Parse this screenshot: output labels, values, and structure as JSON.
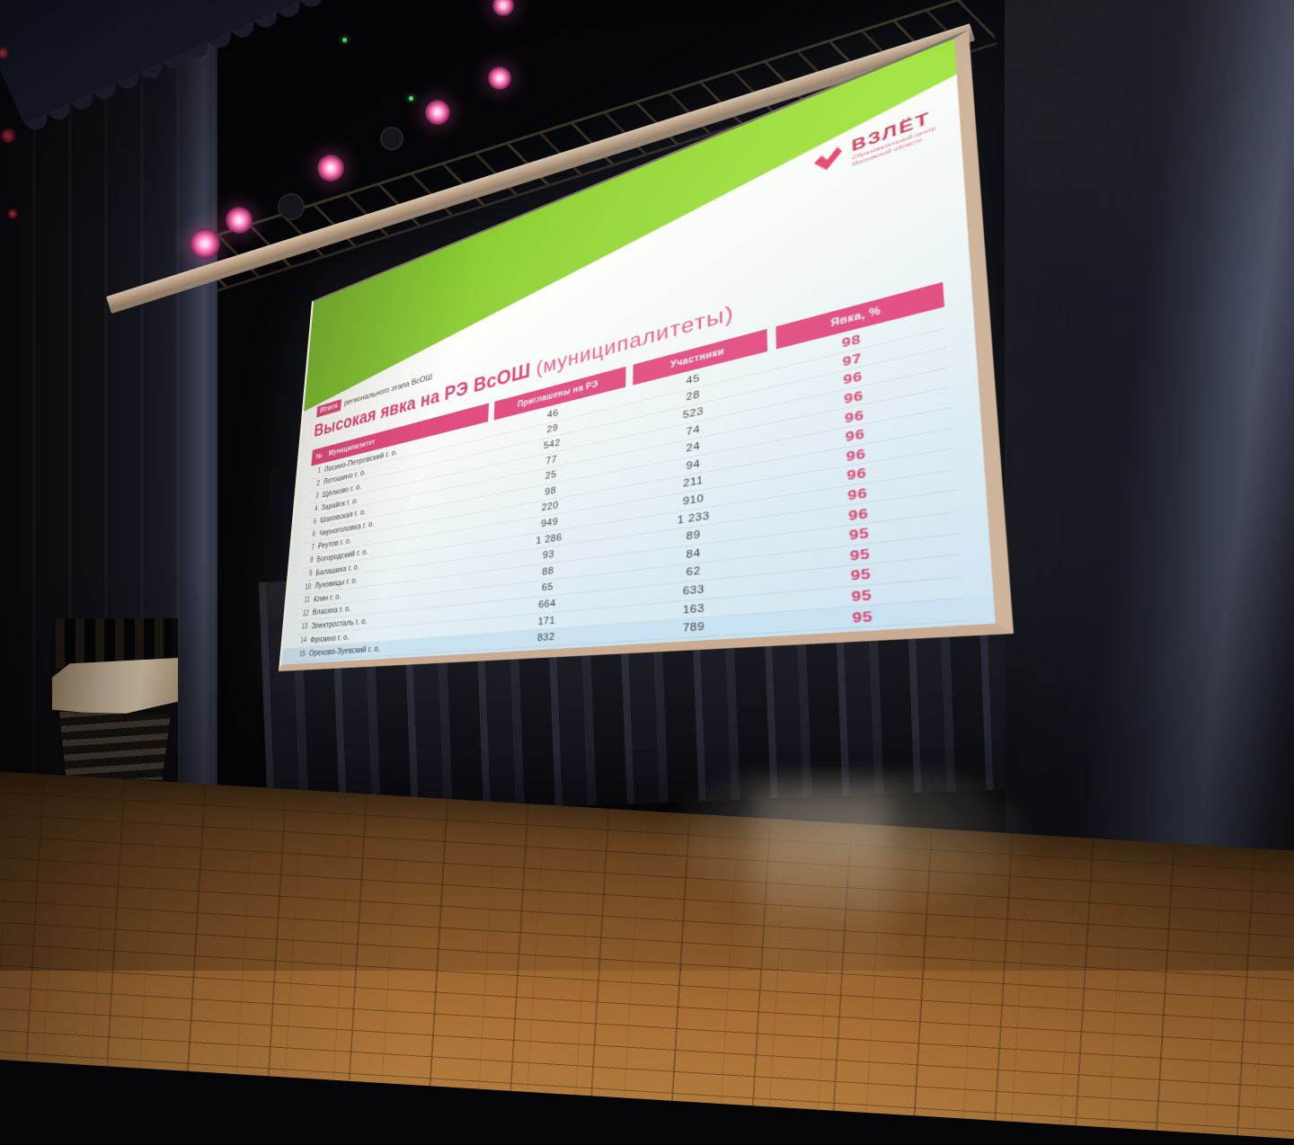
{
  "scene": {
    "stage_light_color": "#ff8cc4",
    "curtain_color": "#16171f",
    "floor_color": "#96622e"
  },
  "slide": {
    "kicker": {
      "highlight": "Итоги",
      "rest": "регионального этапа ВсОШ"
    },
    "title": "Высокая явка на РЭ ВсОШ",
    "title_suffix": "(муниципалитеты)",
    "logo": {
      "wordmark": "ВЗЛЁТ",
      "tagline_line1": "Образовательный центр",
      "tagline_line2": "Московской области"
    },
    "colors": {
      "accent_pink": "#e0457b",
      "title_pink": "#e23d72",
      "rate_pink": "#d6446e",
      "lime_green": "#97d32f",
      "logo_red": "#d13a56"
    },
    "table": {
      "columns": [
        "№",
        "Муниципалитет",
        "Приглашены на РЭ",
        "Участники",
        "Явка, %"
      ],
      "rows": [
        [
          "1",
          "Лосино-Петровский г. о.",
          "46",
          "45",
          "98"
        ],
        [
          "2",
          "Лотошино г. о.",
          "29",
          "28",
          "97"
        ],
        [
          "3",
          "Щёлково г. о.",
          "542",
          "523",
          "96"
        ],
        [
          "4",
          "Зарайск г. о.",
          "77",
          "74",
          "96"
        ],
        [
          "5",
          "Шаховская г. о.",
          "25",
          "24",
          "96"
        ],
        [
          "6",
          "Черноголовка г. о.",
          "98",
          "94",
          "96"
        ],
        [
          "7",
          "Реутов г. о.",
          "220",
          "211",
          "96"
        ],
        [
          "8",
          "Богородский г. о.",
          "949",
          "910",
          "96"
        ],
        [
          "9",
          "Балашиха г. о.",
          "1 286",
          "1 233",
          "96"
        ],
        [
          "10",
          "Луховицы г. о.",
          "93",
          "89",
          "96"
        ],
        [
          "11",
          "Клин г. о.",
          "88",
          "84",
          "95"
        ],
        [
          "12",
          "Власиха г. о.",
          "65",
          "62",
          "95"
        ],
        [
          "13",
          "Электросталь г. о.",
          "664",
          "633",
          "95"
        ],
        [
          "14",
          "Фрязино г. о.",
          "171",
          "163",
          "95"
        ],
        [
          "15",
          "Орехово-Зуевский г. о.",
          "832",
          "789",
          "95"
        ]
      ]
    }
  },
  "chart_data": {
    "type": "table",
    "title": "Высокая явка на РЭ ВсОШ (муниципалитеты)",
    "columns": [
      "№",
      "Муниципалитет",
      "Приглашены на РЭ",
      "Участники",
      "Явка, %"
    ],
    "rows": [
      [
        "1",
        "Лосино-Петровский г. о.",
        46,
        45,
        98
      ],
      [
        "2",
        "Лотошино г. о.",
        29,
        28,
        97
      ],
      [
        "3",
        "Щёлково г. о.",
        542,
        523,
        96
      ],
      [
        "4",
        "Зарайск г. о.",
        77,
        74,
        96
      ],
      [
        "5",
        "Шаховская г. о.",
        25,
        24,
        96
      ],
      [
        "6",
        "Черноголовка г. о.",
        98,
        94,
        96
      ],
      [
        "7",
        "Реутов г. о.",
        220,
        211,
        96
      ],
      [
        "8",
        "Богородский г. о.",
        949,
        910,
        96
      ],
      [
        "9",
        "Балашиха г. о.",
        1286,
        1233,
        96
      ],
      [
        "10",
        "Луховицы г. о.",
        93,
        89,
        96
      ],
      [
        "11",
        "Клин г. о.",
        88,
        84,
        95
      ],
      [
        "12",
        "Власиха г. о.",
        65,
        62,
        95
      ],
      [
        "13",
        "Электросталь г. о.",
        664,
        633,
        95
      ],
      [
        "14",
        "Фрязино г. о.",
        171,
        163,
        95
      ],
      [
        "15",
        "Орехово-Зуевский г. о.",
        832,
        789,
        95
      ]
    ]
  }
}
